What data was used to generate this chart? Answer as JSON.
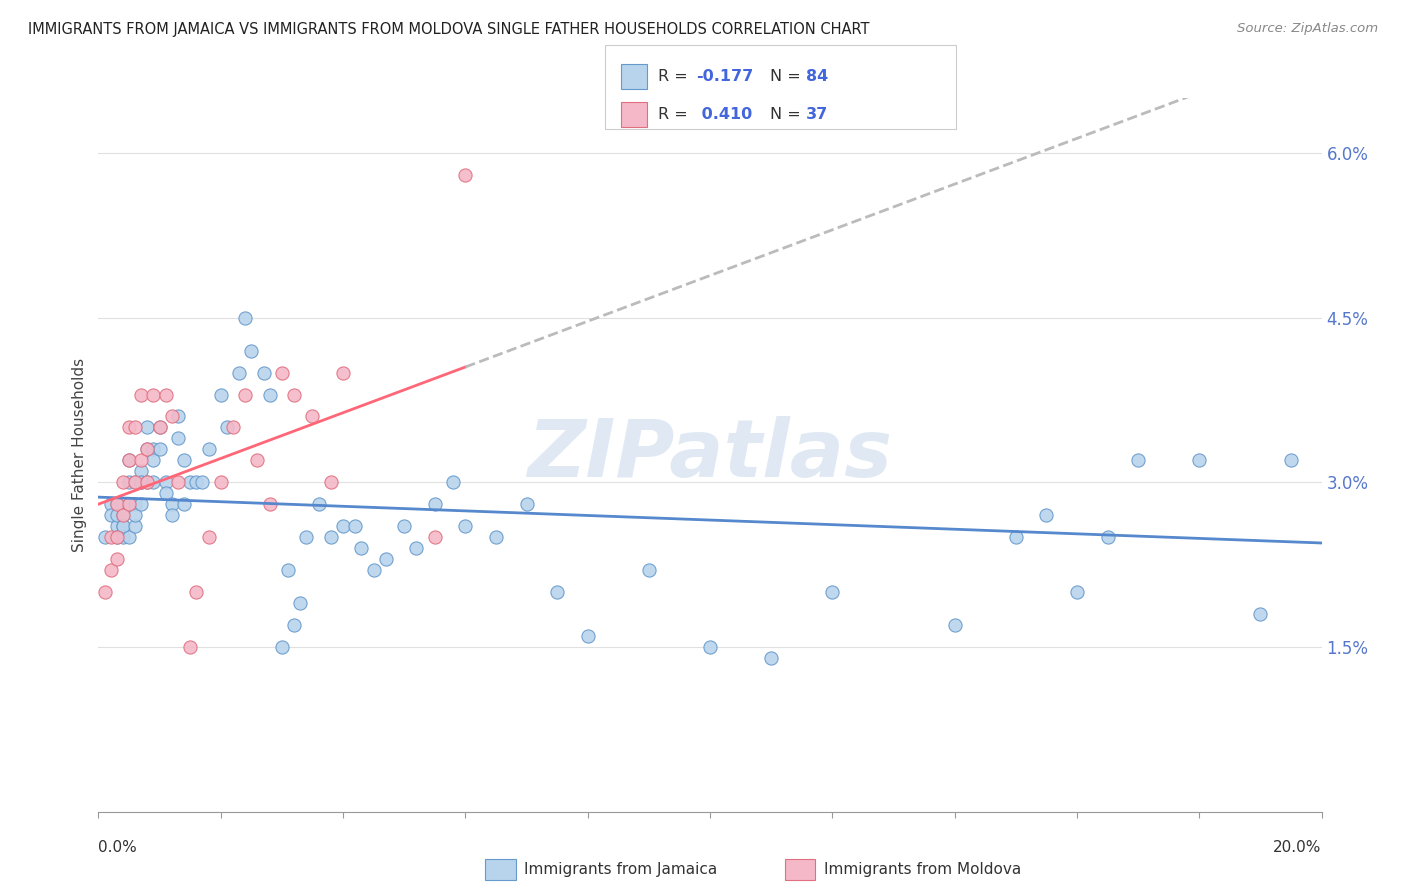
{
  "title": "IMMIGRANTS FROM JAMAICA VS IMMIGRANTS FROM MOLDOVA SINGLE FATHER HOUSEHOLDS CORRELATION CHART",
  "source": "Source: ZipAtlas.com",
  "ylabel": "Single Father Households",
  "xlim": [
    0.0,
    0.2
  ],
  "ylim": [
    0.0,
    0.065
  ],
  "watermark": "ZIPatlas",
  "r_jamaica": -0.177,
  "r_moldova": 0.41,
  "n_jamaica": 84,
  "n_moldova": 37,
  "color_jamaica_fill": "#b8d4ed",
  "color_jamaica_edge": "#6699cc",
  "color_moldova_fill": "#f4b8c8",
  "color_moldova_edge": "#e07080",
  "color_jamaica_line": "#5588cc",
  "color_moldova_line": "#ff6677",
  "color_dashed": "#bbbbbb",
  "jamaica_x": [
    0.001,
    0.002,
    0.002,
    0.003,
    0.003,
    0.003,
    0.003,
    0.004,
    0.004,
    0.004,
    0.004,
    0.005,
    0.005,
    0.005,
    0.005,
    0.006,
    0.006,
    0.006,
    0.006,
    0.007,
    0.007,
    0.007,
    0.007,
    0.008,
    0.008,
    0.008,
    0.009,
    0.009,
    0.009,
    0.01,
    0.01,
    0.011,
    0.011,
    0.012,
    0.012,
    0.013,
    0.013,
    0.014,
    0.014,
    0.015,
    0.016,
    0.017,
    0.018,
    0.02,
    0.021,
    0.023,
    0.024,
    0.025,
    0.027,
    0.028,
    0.03,
    0.031,
    0.032,
    0.033,
    0.034,
    0.036,
    0.038,
    0.04,
    0.042,
    0.043,
    0.045,
    0.047,
    0.05,
    0.052,
    0.055,
    0.058,
    0.06,
    0.065,
    0.07,
    0.075,
    0.08,
    0.09,
    0.1,
    0.11,
    0.12,
    0.14,
    0.15,
    0.16,
    0.17,
    0.18,
    0.155,
    0.165,
    0.19,
    0.195
  ],
  "jamaica_y": [
    0.025,
    0.028,
    0.027,
    0.026,
    0.028,
    0.027,
    0.025,
    0.026,
    0.027,
    0.025,
    0.026,
    0.025,
    0.028,
    0.032,
    0.03,
    0.026,
    0.028,
    0.03,
    0.027,
    0.03,
    0.031,
    0.03,
    0.028,
    0.035,
    0.033,
    0.03,
    0.033,
    0.032,
    0.03,
    0.035,
    0.033,
    0.03,
    0.029,
    0.028,
    0.027,
    0.036,
    0.034,
    0.032,
    0.028,
    0.03,
    0.03,
    0.03,
    0.033,
    0.038,
    0.035,
    0.04,
    0.045,
    0.042,
    0.04,
    0.038,
    0.015,
    0.022,
    0.017,
    0.019,
    0.025,
    0.028,
    0.025,
    0.026,
    0.026,
    0.024,
    0.022,
    0.023,
    0.026,
    0.024,
    0.028,
    0.03,
    0.026,
    0.025,
    0.028,
    0.02,
    0.016,
    0.022,
    0.015,
    0.014,
    0.02,
    0.017,
    0.025,
    0.02,
    0.032,
    0.032,
    0.027,
    0.025,
    0.018,
    0.032
  ],
  "moldova_x": [
    0.001,
    0.002,
    0.002,
    0.003,
    0.003,
    0.003,
    0.004,
    0.004,
    0.005,
    0.005,
    0.005,
    0.006,
    0.006,
    0.007,
    0.007,
    0.008,
    0.008,
    0.009,
    0.01,
    0.011,
    0.012,
    0.013,
    0.015,
    0.016,
    0.018,
    0.02,
    0.022,
    0.024,
    0.026,
    0.028,
    0.03,
    0.032,
    0.035,
    0.038,
    0.04,
    0.055,
    0.06
  ],
  "moldova_y": [
    0.02,
    0.022,
    0.025,
    0.023,
    0.028,
    0.025,
    0.03,
    0.027,
    0.032,
    0.035,
    0.028,
    0.035,
    0.03,
    0.038,
    0.032,
    0.03,
    0.033,
    0.038,
    0.035,
    0.038,
    0.036,
    0.03,
    0.015,
    0.02,
    0.025,
    0.03,
    0.035,
    0.038,
    0.032,
    0.028,
    0.04,
    0.038,
    0.036,
    0.03,
    0.04,
    0.025,
    0.058
  ],
  "background_color": "#ffffff",
  "grid_color": "#e0e0e0",
  "title_color": "#222222",
  "ytick_color": "#5577cc"
}
